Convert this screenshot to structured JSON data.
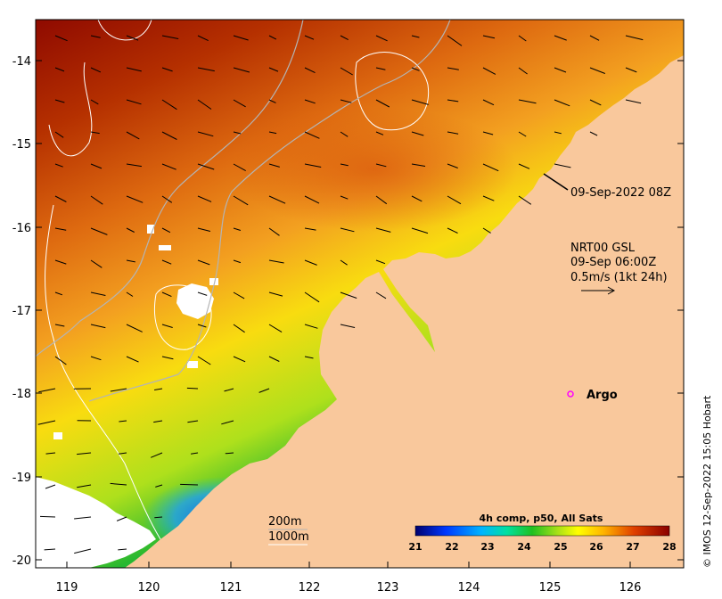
{
  "map": {
    "x_ticks": [
      "119",
      "120",
      "121",
      "122",
      "123",
      "124",
      "125",
      "126"
    ],
    "y_ticks": [
      "-14",
      "-15",
      "-16",
      "-17",
      "-18",
      "-19",
      "-20"
    ],
    "drifter_label": "09-Sep-2022 08Z",
    "current_legend": {
      "line1": "NRT00 GSL",
      "line2": "09-Sep 06:00Z",
      "line3": "0.5m/s (1kt 24h)"
    },
    "argo_label": "Argo",
    "bathymetry": {
      "line1": "200m",
      "line2": "1000m"
    },
    "colorbar": {
      "title": "4h comp, p50, All Sats",
      "ticks": [
        "21",
        "22",
        "23",
        "24",
        "25",
        "26",
        "27",
        "28"
      ]
    },
    "credit": "© IMOS 12-Sep-2022 15:05 Hobart",
    "colors": {
      "land": "#f9c89c",
      "argo_marker": "#ff00ff",
      "contour": "#b4b4b4"
    }
  }
}
